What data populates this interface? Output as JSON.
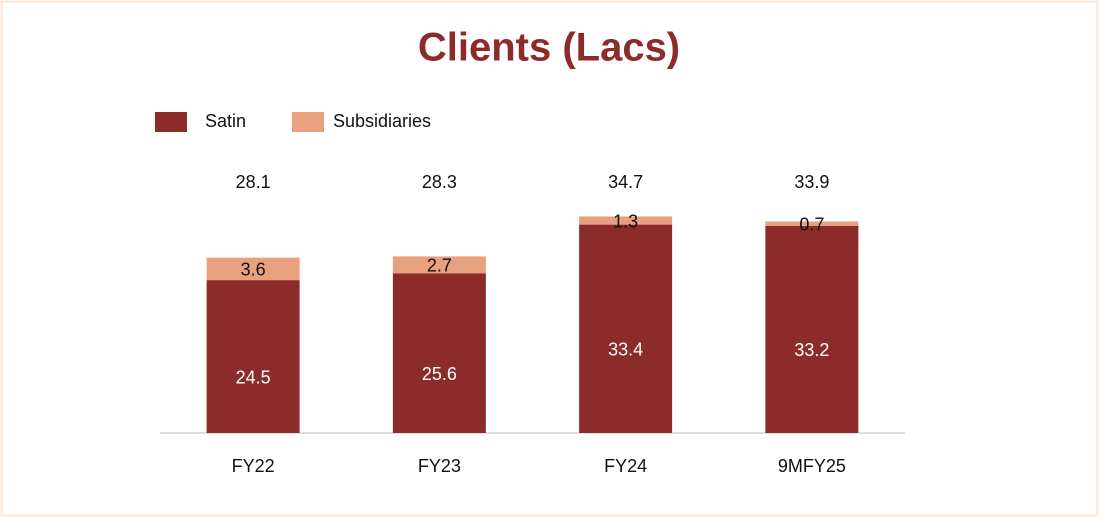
{
  "chart_data": {
    "type": "stacked_bar",
    "title": "Clients (Lacs)",
    "categories": [
      "FY22",
      "FY23",
      "FY24",
      "9MFY25"
    ],
    "series": [
      {
        "name": "Satin",
        "color": "#8b2c2a",
        "values": [
          24.5,
          25.6,
          33.4,
          33.2
        ]
      },
      {
        "name": "Subsidiaries",
        "color": "#e9a07f",
        "values": [
          3.6,
          2.7,
          1.3,
          0.7
        ]
      }
    ],
    "totals": [
      28.1,
      28.3,
      34.7,
      33.9
    ]
  }
}
